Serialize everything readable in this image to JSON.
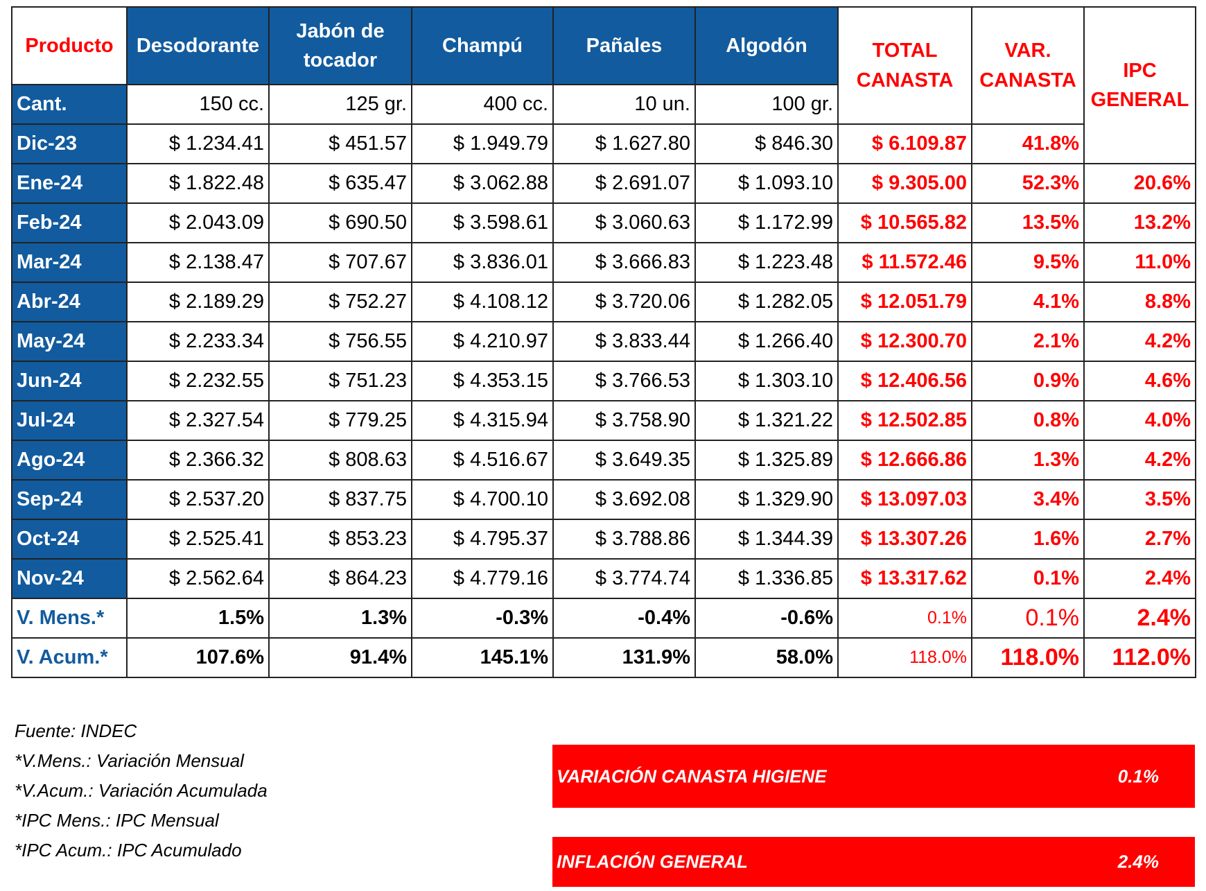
{
  "table": {
    "header": [
      "Producto",
      "Desodorante",
      "Jabón de tocador",
      "Champú",
      "Pañales",
      "Algodón",
      "TOTAL CANASTA",
      "VAR. CANASTA",
      "IPC GENERAL"
    ],
    "quantities": {
      "label": "Cant.",
      "values": [
        "150 cc.",
        "125 gr.",
        "400 cc.",
        "10 un.",
        "100 gr."
      ]
    },
    "rows": [
      {
        "label": "Dic-23",
        "values": [
          "$ 1.234.41",
          "$ 451.57",
          "$ 1.949.79",
          "$ 1.627.80",
          "$ 846.30",
          "$ 6.109.87",
          "41.8%"
        ]
      },
      {
        "label": "Ene-24",
        "values": [
          "$ 1.822.48",
          "$ 635.47",
          "$ 3.062.88",
          "$ 2.691.07",
          "$ 1.093.10",
          "$ 9.305.00",
          "52.3%",
          "20.6%"
        ]
      },
      {
        "label": "Feb-24",
        "values": [
          "$ 2.043.09",
          "$ 690.50",
          "$ 3.598.61",
          "$ 3.060.63",
          "$ 1.172.99",
          "$ 10.565.82",
          "13.5%",
          "13.2%"
        ]
      },
      {
        "label": "Mar-24",
        "values": [
          "$ 2.138.47",
          "$ 707.67",
          "$ 3.836.01",
          "$ 3.666.83",
          "$ 1.223.48",
          "$ 11.572.46",
          "9.5%",
          "11.0%"
        ]
      },
      {
        "label": "Abr-24",
        "values": [
          "$ 2.189.29",
          "$ 752.27",
          "$ 4.108.12",
          "$ 3.720.06",
          "$ 1.282.05",
          "$ 12.051.79",
          "4.1%",
          "8.8%"
        ]
      },
      {
        "label": "May-24",
        "values": [
          "$ 2.233.34",
          "$ 756.55",
          "$ 4.210.97",
          "$ 3.833.44",
          "$ 1.266.40",
          "$ 12.300.70",
          "2.1%",
          "4.2%"
        ]
      },
      {
        "label": "Jun-24",
        "values": [
          "$ 2.232.55",
          "$ 751.23",
          "$ 4.353.15",
          "$ 3.766.53",
          "$ 1.303.10",
          "$ 12.406.56",
          "0.9%",
          "4.6%"
        ]
      },
      {
        "label": "Jul-24",
        "values": [
          "$ 2.327.54",
          "$ 779.25",
          "$ 4.315.94",
          "$ 3.758.90",
          "$ 1.321.22",
          "$ 12.502.85",
          "0.8%",
          "4.0%"
        ]
      },
      {
        "label": "Ago-24",
        "values": [
          "$ 2.366.32",
          "$ 808.63",
          "$ 4.516.67",
          "$ 3.649.35",
          "$ 1.325.89",
          "$ 12.666.86",
          "1.3%",
          "4.2%"
        ]
      },
      {
        "label": "Sep-24",
        "values": [
          "$ 2.537.20",
          "$ 837.75",
          "$ 4.700.10",
          "$ 3.692.08",
          "$ 1.329.90",
          "$ 13.097.03",
          "3.4%",
          "3.5%"
        ]
      },
      {
        "label": "Oct-24",
        "values": [
          "$ 2.525.41",
          "$ 853.23",
          "$ 4.795.37",
          "$ 3.788.86",
          "$ 1.344.39",
          "$ 13.307.26",
          "1.6%",
          "2.7%"
        ]
      },
      {
        "label": "Nov-24",
        "values": [
          "$ 2.562.64",
          "$ 864.23",
          "$ 4.779.16",
          "$ 3.774.74",
          "$ 1.336.85",
          "$ 13.317.62",
          "0.1%",
          "2.4%"
        ]
      }
    ],
    "summary": [
      {
        "label": "V. Mens.*",
        "values": [
          "1.5%",
          "1.3%",
          "-0.3%",
          "-0.4%",
          "-0.6%",
          "0.1%",
          "0.1%",
          "2.4%"
        ]
      },
      {
        "label": "V. Acum.*",
        "values": [
          "107.6%",
          "91.4%",
          "145.1%",
          "131.9%",
          "58.0%",
          "118.0%",
          "118.0%",
          "112.0%"
        ]
      }
    ]
  },
  "notes": [
    "Fuente: INDEC",
    "*V.Mens.: Variación Mensual",
    "*V.Acum.: Variación Acumulada",
    "*IPC Mens.: IPC Mensual",
    "*IPC Acum.: IPC Acumulado"
  ],
  "summary_boxes": [
    {
      "label": "VARIACIÓN CANASTA HIGIENE",
      "value": "0.1%"
    },
    {
      "label": "INFLACIÓN GENERAL",
      "value": "2.4%"
    }
  ]
}
